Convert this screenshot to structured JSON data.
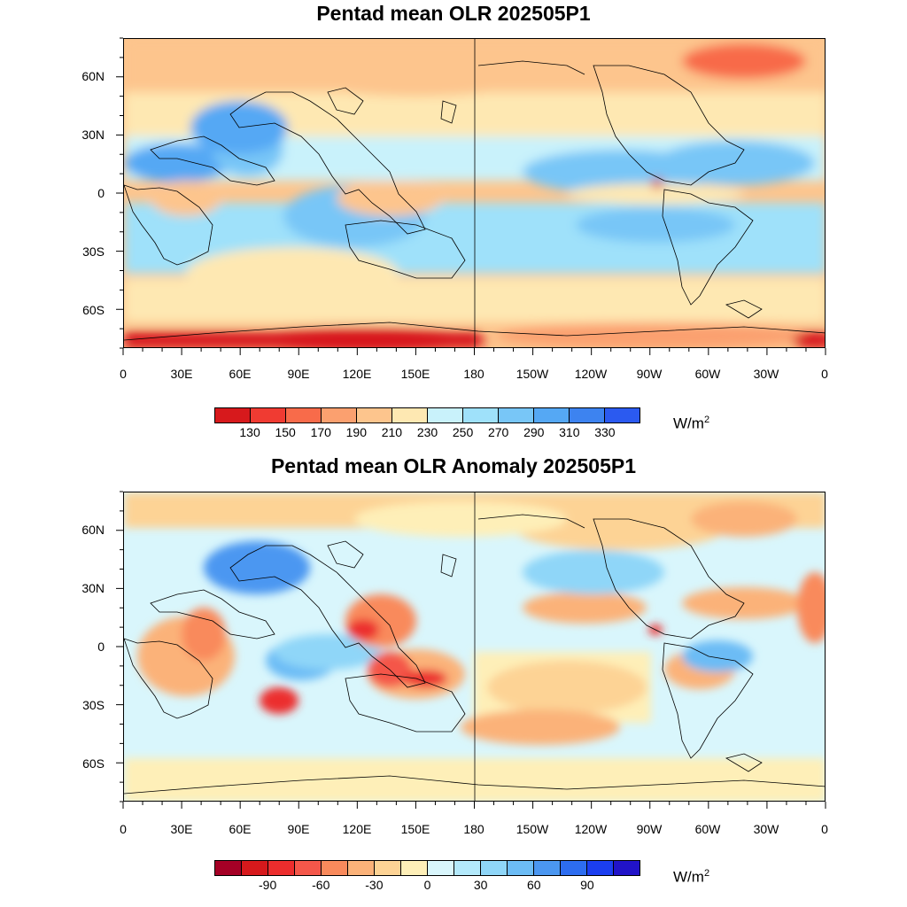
{
  "panels": [
    {
      "title": "Pentad mean OLR 202505P1",
      "lat_labels": [
        "60N",
        "30N",
        "0",
        "30S",
        "60S"
      ],
      "lon_labels": [
        "0",
        "30E",
        "60E",
        "90E",
        "120E",
        "150E",
        "180",
        "150W",
        "120W",
        "90W",
        "60W",
        "30W",
        "0"
      ],
      "colorbar": {
        "labels": [
          "130",
          "150",
          "170",
          "190",
          "210",
          "230",
          "250",
          "270",
          "290",
          "310",
          "330"
        ],
        "colors": [
          "#d7191c",
          "#f03b32",
          "#f86b4a",
          "#fba06f",
          "#fdc58d",
          "#fee8b2",
          "#c9f2fb",
          "#9fe1fa",
          "#78c6f7",
          "#55a8f4",
          "#3d83f0",
          "#2b5af0"
        ],
        "units": "W/m",
        "units_sup": "2"
      }
    },
    {
      "title": "Pentad mean OLR Anomaly 202505P1",
      "lat_labels": [
        "60N",
        "30N",
        "0",
        "30S",
        "60S"
      ],
      "lon_labels": [
        "0",
        "30E",
        "60E",
        "90E",
        "120E",
        "150E",
        "180",
        "150W",
        "120W",
        "90W",
        "60W",
        "30W",
        "0"
      ],
      "colorbar": {
        "labels": [
          "-90",
          "-60",
          "-30",
          "0",
          "30",
          "60",
          "90"
        ],
        "colors": [
          "#a50026",
          "#d7191c",
          "#ec2d2d",
          "#f4574a",
          "#f98a5c",
          "#fbb279",
          "#fdd395",
          "#feefb8",
          "#d9f6fc",
          "#b3e9fb",
          "#8fd6f8",
          "#6cbcf5",
          "#4b97f1",
          "#2d6df0",
          "#1b3ef0",
          "#2113c8"
        ],
        "units": "W/m",
        "units_sup": "2"
      }
    }
  ]
}
